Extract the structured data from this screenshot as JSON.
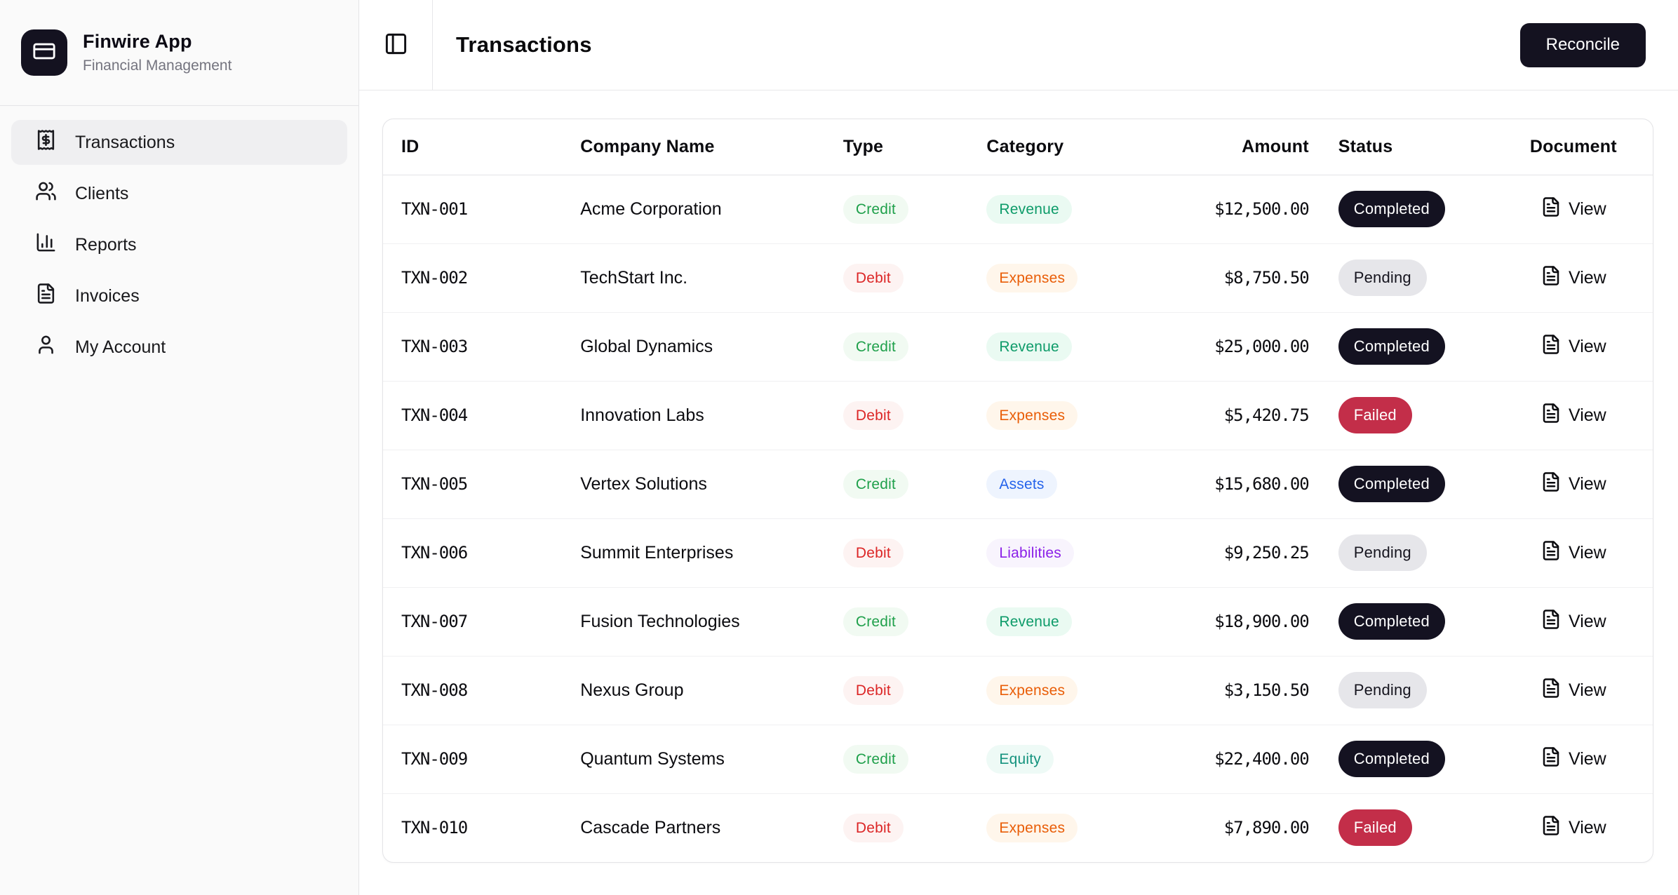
{
  "app": {
    "name": "Finwire App",
    "tagline": "Financial Management",
    "logo_icon": "credit-card-icon"
  },
  "sidebar": {
    "items": [
      {
        "label": "Transactions",
        "icon": "receipt-icon",
        "active": true
      },
      {
        "label": "Clients",
        "icon": "users-icon",
        "active": false
      },
      {
        "label": "Reports",
        "icon": "bar-chart-icon",
        "active": false
      },
      {
        "label": "Invoices",
        "icon": "file-text-icon",
        "active": false
      },
      {
        "label": "My Account",
        "icon": "user-icon",
        "active": false
      }
    ]
  },
  "header": {
    "title": "Transactions",
    "toggle_icon": "panel-left-icon",
    "reconcile_label": "Reconcile"
  },
  "table": {
    "columns": [
      "ID",
      "Company Name",
      "Type",
      "Category",
      "Amount",
      "Status",
      "Document"
    ],
    "view_label": "View",
    "view_icon": "file-text-icon",
    "rows": [
      {
        "id": "TXN-001",
        "company": "Acme Corporation",
        "type": "Credit",
        "category": "Revenue",
        "amount": "$12,500.00",
        "status": "Completed"
      },
      {
        "id": "TXN-002",
        "company": "TechStart Inc.",
        "type": "Debit",
        "category": "Expenses",
        "amount": "$8,750.50",
        "status": "Pending"
      },
      {
        "id": "TXN-003",
        "company": "Global Dynamics",
        "type": "Credit",
        "category": "Revenue",
        "amount": "$25,000.00",
        "status": "Completed"
      },
      {
        "id": "TXN-004",
        "company": "Innovation Labs",
        "type": "Debit",
        "category": "Expenses",
        "amount": "$5,420.75",
        "status": "Failed"
      },
      {
        "id": "TXN-005",
        "company": "Vertex Solutions",
        "type": "Credit",
        "category": "Assets",
        "amount": "$15,680.00",
        "status": "Completed"
      },
      {
        "id": "TXN-006",
        "company": "Summit Enterprises",
        "type": "Debit",
        "category": "Liabilities",
        "amount": "$9,250.25",
        "status": "Pending"
      },
      {
        "id": "TXN-007",
        "company": "Fusion Technologies",
        "type": "Credit",
        "category": "Revenue",
        "amount": "$18,900.00",
        "status": "Completed"
      },
      {
        "id": "TXN-008",
        "company": "Nexus Group",
        "type": "Debit",
        "category": "Expenses",
        "amount": "$3,150.50",
        "status": "Pending"
      },
      {
        "id": "TXN-009",
        "company": "Quantum Systems",
        "type": "Credit",
        "category": "Equity",
        "amount": "$22,400.00",
        "status": "Completed"
      },
      {
        "id": "TXN-010",
        "company": "Cascade Partners",
        "type": "Debit",
        "category": "Expenses",
        "amount": "$7,890.00",
        "status": "Failed"
      }
    ]
  },
  "colors": {
    "primary": "#141220",
    "sidebar_bg": "#fafafa",
    "border": "#e4e4e7",
    "muted_text": "#74747f",
    "credit_green": "#1fa04b",
    "debit_red": "#dc2626",
    "revenue_green": "#0d9b69",
    "expenses_orange": "#e95d07",
    "assets_blue": "#2563eb",
    "liabilities_purple": "#8b20e8",
    "equity_teal": "#15937e",
    "status_completed_bg": "#141221",
    "status_pending_bg": "#e6e6ea",
    "status_failed_bg": "#c32e49"
  }
}
